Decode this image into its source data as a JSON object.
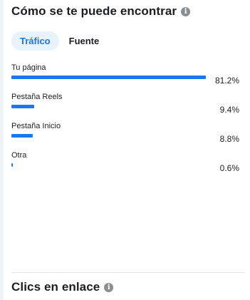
{
  "traffic_section": {
    "title": "Cómo se te puede encontrar",
    "info_icon": "info-icon",
    "tabs": [
      {
        "label": "Tráfico",
        "active": true
      },
      {
        "label": "Fuente",
        "active": false
      }
    ],
    "rows": [
      {
        "label": "Tu página",
        "value": 81.2,
        "display": "81.2%"
      },
      {
        "label": "Pestaña Reels",
        "value": 9.4,
        "display": "9.4%"
      },
      {
        "label": "Pestaña Inicio",
        "value": 8.8,
        "display": "8.8%"
      },
      {
        "label": "Otra",
        "value": 0.6,
        "display": "0.6%"
      }
    ]
  },
  "link_clicks_section": {
    "title": "Clics en enlace",
    "info_icon": "info-icon"
  },
  "colors": {
    "accent": "#1877f2",
    "active_tab_bg": "#e7f3ff",
    "icon_gray": "#8a8d91"
  }
}
